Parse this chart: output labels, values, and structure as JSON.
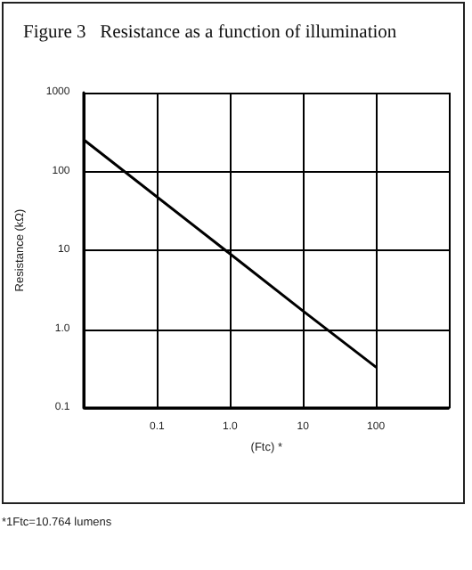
{
  "chart_data": {
    "type": "line",
    "title": "Figure 3   Resistance as a function of illumination",
    "xlabel": "(Ftc) *",
    "ylabel": "Resistance (kΩ)",
    "annotations": [
      "*1Ftc=10.764 lumens"
    ],
    "x": [
      0.01,
      1,
      10,
      100
    ],
    "series": [
      {
        "color": "#000000",
        "values": [
          250,
          9,
          1.7,
          0.33
        ]
      }
    ],
    "log": "xy",
    "xlim": [
      0.01,
      1000
    ],
    "ylim": [
      0.1,
      1000
    ],
    "xticks": [
      {
        "value": 0.01,
        "label": null
      },
      0.1,
      {
        "value": 1,
        "label": "1.0"
      },
      10,
      100,
      {
        "value": 1000,
        "label": null
      }
    ],
    "yticks": [
      0.1,
      {
        "value": 1,
        "label": "1.0"
      },
      10,
      100,
      1000
    ],
    "grid": true,
    "marker": "none",
    "line_style": "solid"
  }
}
